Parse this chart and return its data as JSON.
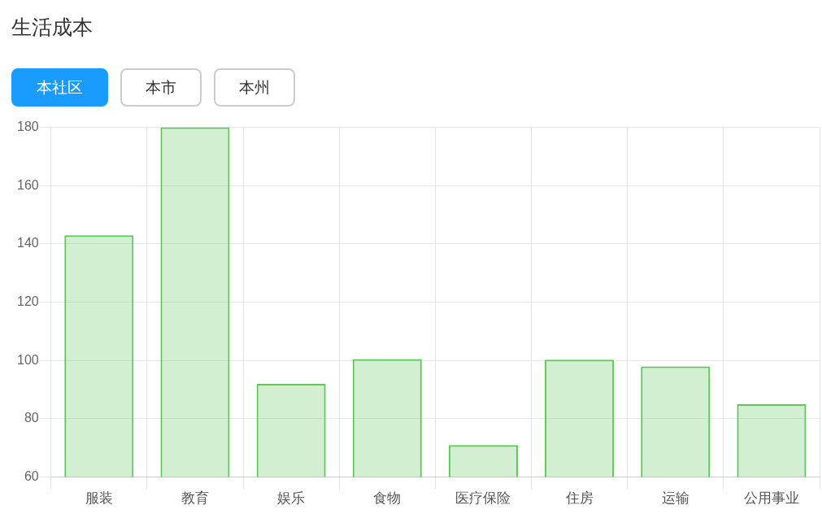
{
  "chart_data": {
    "type": "bar",
    "title": "生活成本",
    "annotations": [
      "本社区",
      "本市",
      "本州"
    ],
    "categories": [
      "服装",
      "教育",
      "娱乐",
      "食物",
      "医疗保险",
      "住房",
      "运输",
      "公用事业"
    ],
    "values": [
      143,
      180,
      92,
      100.5,
      71,
      100.3,
      98,
      85
    ],
    "color": "#5ec85a",
    "ylim": [
      60,
      180
    ],
    "yticks": [
      60,
      80,
      100,
      120,
      140,
      160,
      180
    ],
    "grid": true
  }
}
